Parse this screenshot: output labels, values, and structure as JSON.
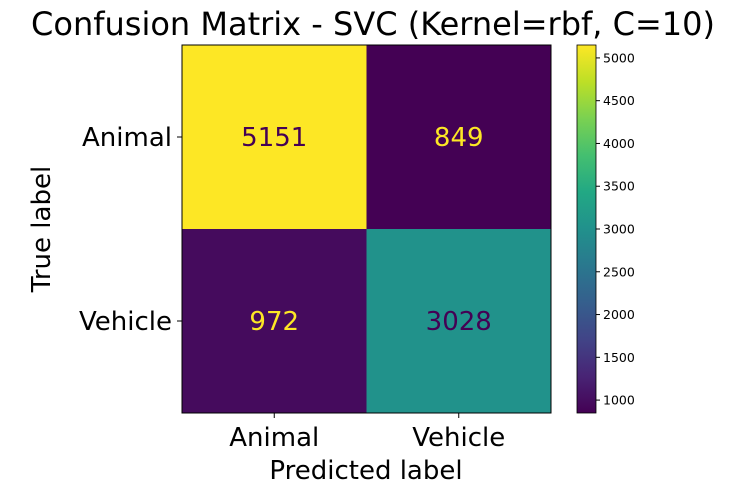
{
  "chart_data": {
    "type": "heatmap",
    "title": "Confusion Matrix - SVC (Kernel=rbf, C=10)",
    "xlabel": "Predicted label",
    "ylabel": "True label",
    "x_categories": [
      "Animal",
      "Vehicle"
    ],
    "y_categories": [
      "Animal",
      "Vehicle"
    ],
    "matrix": [
      [
        5151,
        849
      ],
      [
        972,
        3028
      ]
    ],
    "colormap": "viridis",
    "colorbar": {
      "min": 849,
      "max": 5151,
      "ticks": [
        1000,
        1500,
        2000,
        2500,
        3000,
        3500,
        4000,
        4500,
        5000
      ],
      "tick_labels": [
        "1000",
        "1500",
        "2000",
        "2500",
        "3000",
        "3500",
        "4000",
        "4500",
        "5000"
      ]
    },
    "colors": {
      "low": "#440154",
      "high": "#fde725",
      "text_on_dark": "#fde725",
      "text_on_light": "#440154"
    }
  }
}
